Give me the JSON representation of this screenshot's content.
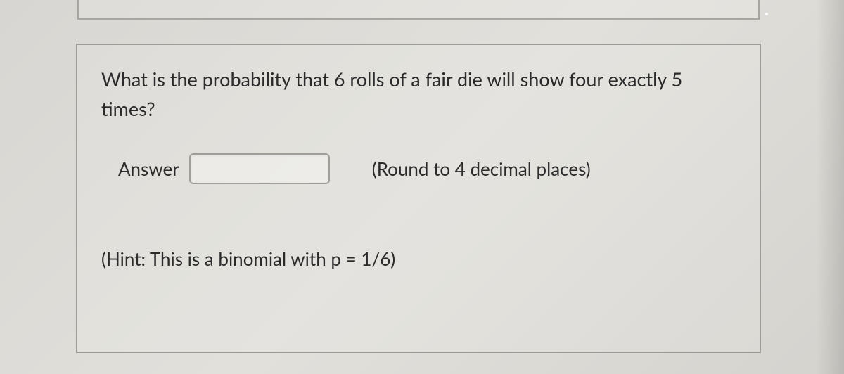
{
  "question": "What is the probability that 6 rolls of a fair die will show four exactly 5 times?",
  "answer_label": "Answer",
  "answer_value": "",
  "round_note": "(Round to 4 decimal places)",
  "hint": "(Hint: This is a binomial with p = 1/6)"
}
